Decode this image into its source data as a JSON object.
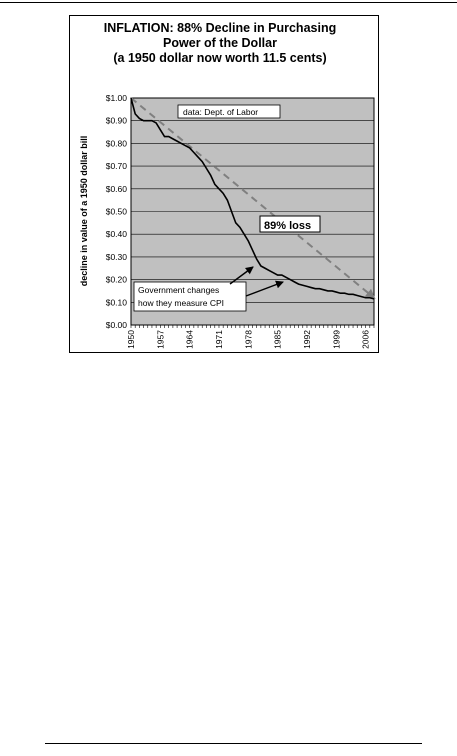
{
  "chart_data": {
    "type": "line",
    "title_lines": [
      "INFLATION: 88% Decline in Purchasing",
      "Power of the Dollar",
      "(a 1950 dollar now worth 11.5 cents)"
    ],
    "ylabel": "decline in value of a 1950 dollar bill",
    "xlabel": "",
    "ylim": [
      0,
      1.0
    ],
    "xlim": [
      1950,
      2008
    ],
    "y_ticks": [
      "$0.00",
      "$0.10",
      "$0.20",
      "$0.30",
      "$0.40",
      "$0.50",
      "$0.60",
      "$0.70",
      "$0.80",
      "$0.90",
      "$1.00"
    ],
    "x_tick_labels": [
      "1950",
      "1957",
      "1964",
      "1971",
      "1978",
      "1985",
      "1992",
      "1999",
      "2006"
    ],
    "grid": "horizontal",
    "plot_background": "#c0c0c0",
    "series": [
      {
        "color": "#000000",
        "style": "solid",
        "x": [
          1950,
          1951,
          1952,
          1953,
          1954,
          1955,
          1956,
          1957,
          1958,
          1959,
          1960,
          1961,
          1962,
          1963,
          1964,
          1965,
          1966,
          1967,
          1968,
          1969,
          1970,
          1971,
          1972,
          1973,
          1974,
          1975,
          1976,
          1977,
          1978,
          1979,
          1980,
          1981,
          1982,
          1983,
          1984,
          1985,
          1986,
          1987,
          1988,
          1989,
          1990,
          1991,
          1992,
          1993,
          1994,
          1995,
          1996,
          1997,
          1998,
          1999,
          2000,
          2001,
          2002,
          2003,
          2004,
          2005,
          2006,
          2007,
          2008
        ],
        "values": [
          1.0,
          0.93,
          0.91,
          0.9,
          0.9,
          0.9,
          0.89,
          0.86,
          0.83,
          0.83,
          0.82,
          0.81,
          0.8,
          0.79,
          0.78,
          0.76,
          0.74,
          0.72,
          0.69,
          0.66,
          0.62,
          0.6,
          0.58,
          0.55,
          0.5,
          0.45,
          0.43,
          0.4,
          0.37,
          0.33,
          0.29,
          0.26,
          0.25,
          0.24,
          0.23,
          0.22,
          0.22,
          0.21,
          0.2,
          0.19,
          0.18,
          0.175,
          0.17,
          0.165,
          0.16,
          0.16,
          0.155,
          0.15,
          0.15,
          0.145,
          0.14,
          0.14,
          0.135,
          0.135,
          0.13,
          0.125,
          0.12,
          0.12,
          0.115
        ]
      },
      {
        "color": "#808080",
        "style": "dashed",
        "x": [
          1950,
          2008
        ],
        "values": [
          1.0,
          0.12
        ]
      }
    ],
    "annotations": {
      "source": "data: Dept. of Labor",
      "loss": "89% loss",
      "callout": [
        "Government changes",
        "how they measure CPI"
      ]
    }
  }
}
